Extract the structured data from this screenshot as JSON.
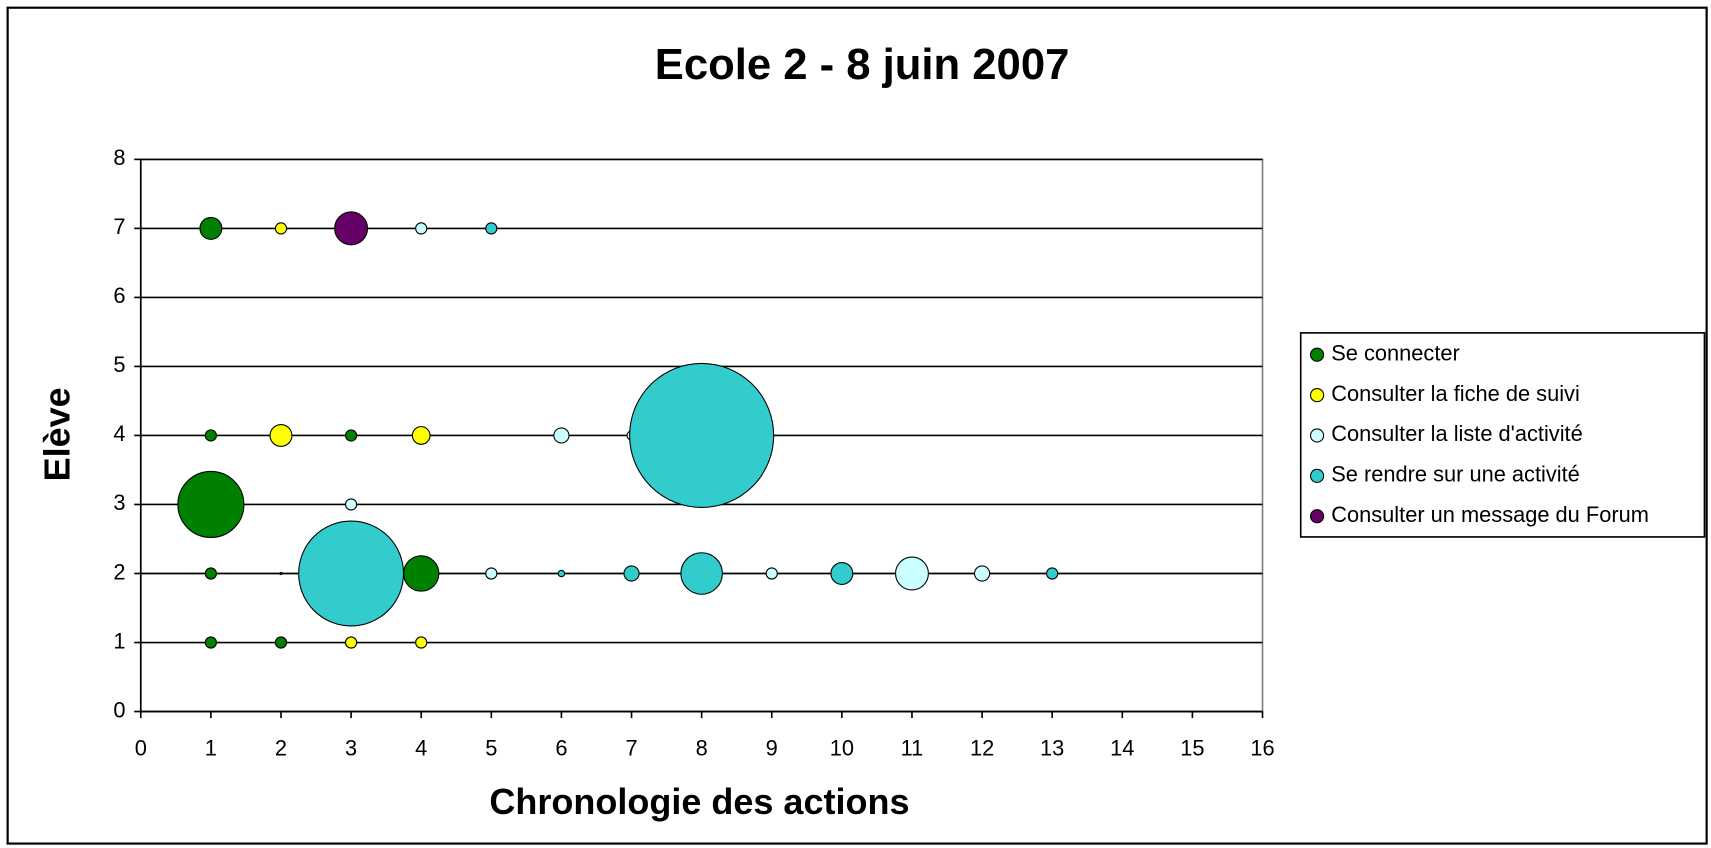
{
  "chart_data": {
    "type": "bubble",
    "title": "Ecole 2 - 8 juin 2007",
    "xlabel": "Chronologie des actions",
    "ylabel": "Elève",
    "xlim": [
      0,
      16
    ],
    "xticks": [
      0,
      1,
      2,
      3,
      4,
      5,
      6,
      7,
      8,
      9,
      10,
      11,
      12,
      13,
      14,
      15,
      16
    ],
    "ylim": [
      0,
      8
    ],
    "yticks": [
      0,
      1,
      2,
      3,
      4,
      5,
      6,
      7,
      8
    ],
    "grid": true,
    "legend": "right",
    "series": [
      {
        "name": "Se connecter",
        "color": "#008000",
        "x": [
          1,
          1,
          3,
          1,
          1,
          4,
          1,
          2,
          2
        ],
        "values": [
          7,
          4,
          4,
          3,
          2,
          2,
          1,
          1,
          2
        ],
        "sizes": [
          2.3,
          0.6,
          0.6,
          21,
          0.6,
          6,
          0.6,
          0.6,
          0.02
        ]
      },
      {
        "name": "Consulter la fiche de suivi",
        "color": "#ffff00",
        "x": [
          2,
          2,
          4,
          3,
          4
        ],
        "values": [
          7,
          4,
          4,
          1,
          1
        ],
        "sizes": [
          0.6,
          2.3,
          1.5,
          0.6,
          0.6
        ]
      },
      {
        "name": "Consulter la liste d'activité",
        "color": "#ccffff",
        "x": [
          4,
          6,
          7,
          3,
          5,
          9,
          11,
          12
        ],
        "values": [
          7,
          4,
          4,
          3,
          2,
          2,
          2,
          2
        ],
        "sizes": [
          0.6,
          1.1,
          0.4,
          0.6,
          0.6,
          0.6,
          5.2,
          1.1
        ]
      },
      {
        "name": "Se rendre sur une activité",
        "color": "#33cccc",
        "x": [
          5,
          8,
          3,
          6,
          7,
          8,
          10,
          13
        ],
        "values": [
          7,
          4,
          2,
          2,
          2,
          2,
          2,
          2
        ],
        "sizes": [
          0.6,
          100,
          53,
          0.2,
          1.1,
          8.3,
          2.3,
          0.6
        ]
      },
      {
        "name": "Consulter un message du Forum",
        "color": "#660066",
        "x": [
          3
        ],
        "values": [
          7
        ],
        "sizes": [
          5.2
        ]
      }
    ]
  }
}
